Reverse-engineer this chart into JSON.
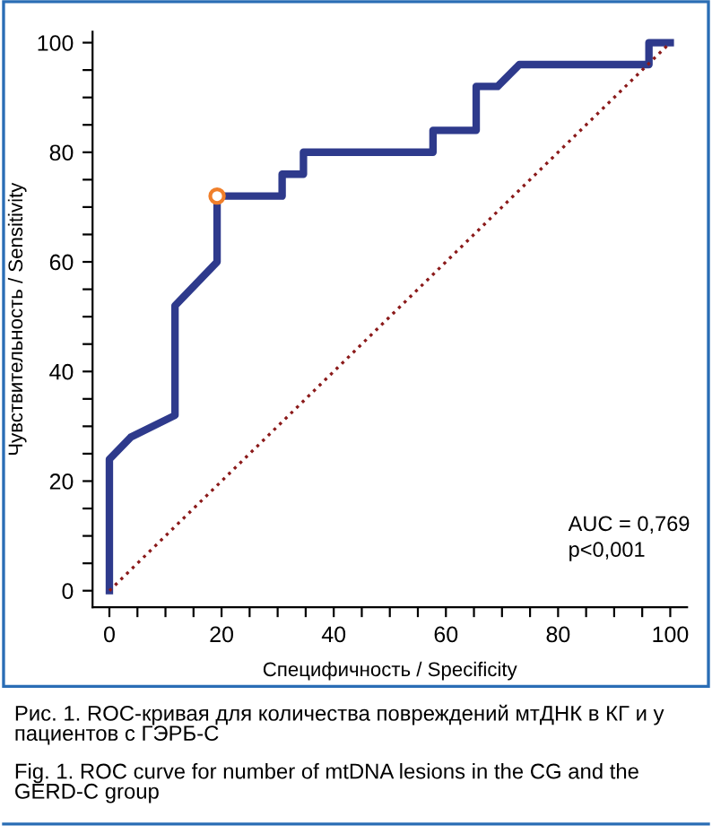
{
  "chart_data": {
    "type": "line",
    "xlabel": "Специфичность / Specificity",
    "ylabel": "Чувствительность / Sensitivity",
    "xlim": [
      -3,
      103
    ],
    "ylim": [
      -3,
      102
    ],
    "xticks": [
      0,
      {
        "value": 5,
        "label": null
      },
      {
        "value": 10,
        "label": null
      },
      {
        "value": 15,
        "label": null
      },
      20,
      {
        "value": 25,
        "label": null
      },
      {
        "value": 30,
        "label": null
      },
      {
        "value": 35,
        "label": null
      },
      40,
      {
        "value": 45,
        "label": null
      },
      {
        "value": 50,
        "label": null
      },
      {
        "value": 55,
        "label": null
      },
      60,
      {
        "value": 65,
        "label": null
      },
      {
        "value": 70,
        "label": null
      },
      {
        "value": 75,
        "label": null
      },
      80,
      {
        "value": 85,
        "label": null
      },
      {
        "value": 90,
        "label": null
      },
      {
        "value": 95,
        "label": null
      },
      100
    ],
    "yticks": [
      0,
      {
        "value": 5,
        "label": null
      },
      {
        "value": 10,
        "label": null
      },
      {
        "value": 15,
        "label": null
      },
      20,
      {
        "value": 25,
        "label": null
      },
      {
        "value": 30,
        "label": null
      },
      {
        "value": 35,
        "label": null
      },
      40,
      {
        "value": 45,
        "label": null
      },
      {
        "value": 50,
        "label": null
      },
      {
        "value": 55,
        "label": null
      },
      60,
      {
        "value": 65,
        "label": null
      },
      {
        "value": 70,
        "label": null
      },
      {
        "value": 75,
        "label": null
      },
      80,
      {
        "value": 85,
        "label": null
      },
      {
        "value": 90,
        "label": null
      },
      {
        "value": 95,
        "label": null
      },
      100
    ],
    "grid": false,
    "legend": false,
    "series": [
      {
        "line_style": "solid",
        "color": "#2e3a8c",
        "x": [
          0,
          0,
          3.8,
          11.7,
          11.7,
          19.2,
          19.2,
          30.8,
          30.8,
          34.6,
          34.6,
          57.7,
          57.7,
          65.4,
          65.4,
          69.2,
          73.1,
          96.2,
          96.2,
          100
        ],
        "values": [
          0,
          24,
          28,
          32,
          52,
          60,
          72,
          72,
          76,
          76,
          80,
          80,
          84,
          84,
          92,
          92,
          96,
          96,
          100,
          100
        ]
      },
      {
        "line_style": "dotted",
        "color": "#8b1a1a",
        "x": [
          0,
          100
        ],
        "values": [
          0,
          100
        ]
      },
      {
        "type": "scatter",
        "marker": "circle",
        "color": "#f07f2a",
        "x": [
          19.2
        ],
        "values": [
          72
        ]
      }
    ],
    "annotations": [
      "AUC = 0,769\np<0,001",
      "Рис. 1. ROC-кривая для количества повреждений мтДНК в КГ и у пациентов с ГЭРБ-С",
      "Fig. 1. ROC curve for number of mtDNA lesions in the CG and the GERD-C group"
    ]
  }
}
